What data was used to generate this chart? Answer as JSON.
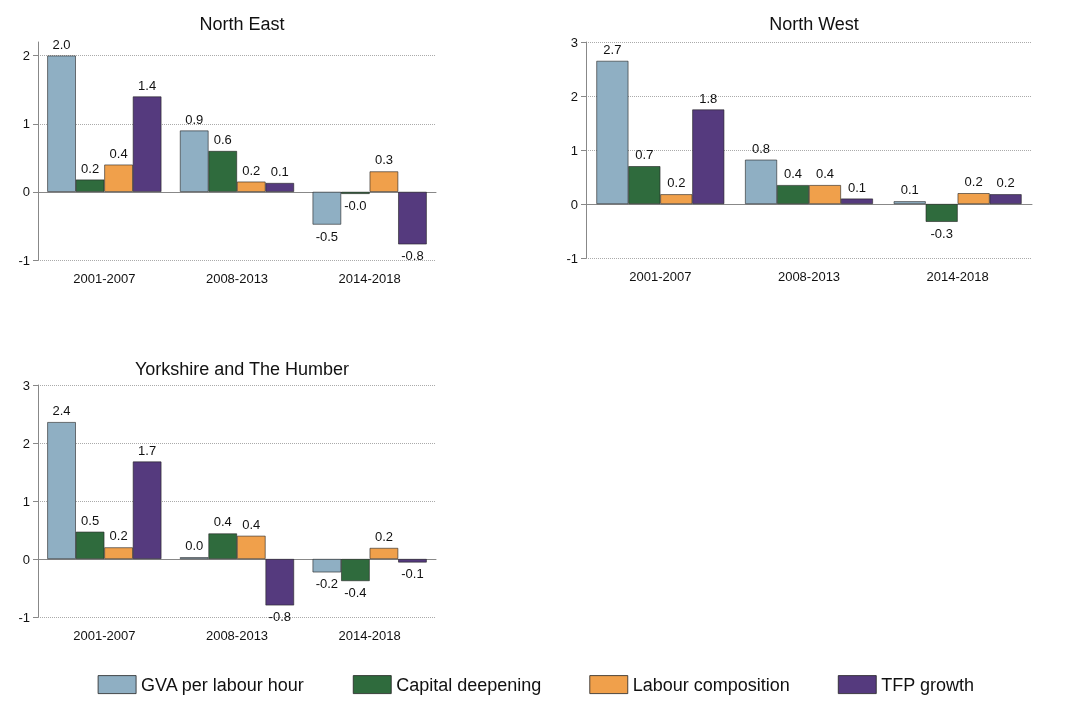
{
  "chart_data": [
    {
      "type": "bar",
      "title": "North East",
      "categories": [
        "2001-2007",
        "2008-2013",
        "2014-2018"
      ],
      "ylim": [
        -1,
        2.2
      ],
      "yticks": [
        -1,
        0,
        1,
        2
      ],
      "grid": "y",
      "series": [
        {
          "color": "#8fafc3",
          "values": [
            2.0,
            0.9,
            -0.48
          ],
          "value_labels": [
            "2.0",
            "0.9",
            "-0.5"
          ]
        },
        {
          "color": "#2f6b3d",
          "values": [
            0.18,
            0.6,
            -0.03
          ],
          "value_labels": [
            "0.2",
            "0.6",
            "-0.0"
          ]
        },
        {
          "color": "#f0a04b",
          "values": [
            0.4,
            0.15,
            0.3
          ],
          "value_labels": [
            "0.4",
            "0.2",
            "0.3"
          ]
        },
        {
          "color": "#553a7e",
          "values": [
            1.4,
            0.13,
            -0.77
          ],
          "value_labels": [
            "1.4",
            "0.1",
            "-0.8"
          ]
        }
      ]
    },
    {
      "type": "bar",
      "title": "North West",
      "categories": [
        "2001-2007",
        "2008-2013",
        "2014-2018"
      ],
      "ylim": [
        -1,
        3
      ],
      "yticks": [
        -1,
        0,
        1,
        2,
        3
      ],
      "grid": "y",
      "series": [
        {
          "color": "#8fafc3",
          "values": [
            2.65,
            0.82,
            0.05
          ],
          "value_labels": [
            "2.7",
            "0.8",
            "0.1"
          ]
        },
        {
          "color": "#2f6b3d",
          "values": [
            0.7,
            0.35,
            -0.33
          ],
          "value_labels": [
            "0.7",
            "0.4",
            "-0.3"
          ]
        },
        {
          "color": "#f0a04b",
          "values": [
            0.18,
            0.35,
            0.2
          ],
          "value_labels": [
            "0.2",
            "0.4",
            "0.2"
          ]
        },
        {
          "color": "#553a7e",
          "values": [
            1.75,
            0.1,
            0.18
          ],
          "value_labels": [
            "1.8",
            "0.1",
            "0.2"
          ]
        }
      ]
    },
    {
      "type": "bar",
      "title": "Yorkshire and The Humber",
      "categories": [
        "2001-2007",
        "2008-2013",
        "2014-2018"
      ],
      "ylim": [
        -1,
        3
      ],
      "yticks": [
        -1,
        0,
        1,
        2,
        3
      ],
      "grid": "y",
      "legend": "bottom",
      "series": [
        {
          "name": "GVA per labour hour",
          "color": "#8fafc3",
          "values": [
            2.36,
            0.03,
            -0.23
          ],
          "value_labels": [
            "2.4",
            "0.0",
            "-0.2"
          ]
        },
        {
          "name": "Capital deepening",
          "color": "#2f6b3d",
          "values": [
            0.47,
            0.44,
            -0.38
          ],
          "value_labels": [
            "0.5",
            "0.4",
            "-0.4"
          ]
        },
        {
          "name": "Labour composition",
          "color": "#f0a04b",
          "values": [
            0.2,
            0.4,
            0.19
          ],
          "value_labels": [
            "0.2",
            "0.4",
            "0.2"
          ]
        },
        {
          "name": "TFP growth",
          "color": "#553a7e",
          "values": [
            1.68,
            -0.8,
            -0.06
          ],
          "value_labels": [
            "1.7",
            "-0.8",
            "-0.1"
          ]
        }
      ]
    }
  ]
}
